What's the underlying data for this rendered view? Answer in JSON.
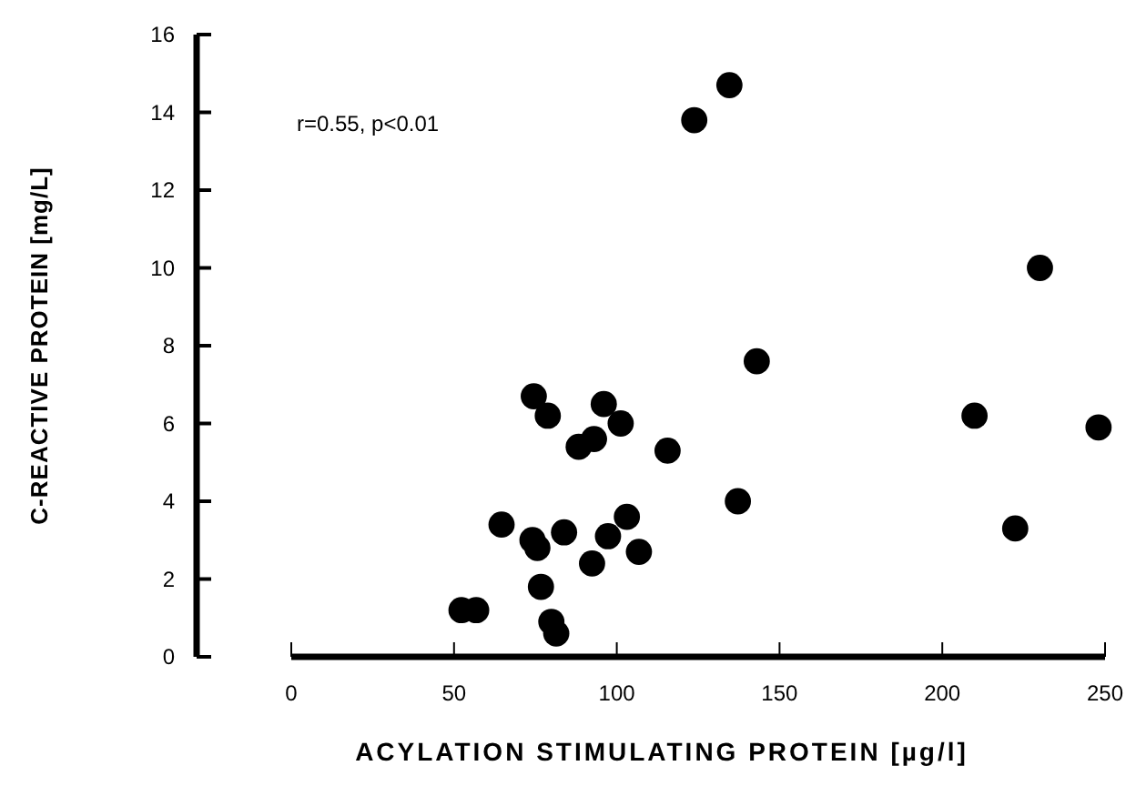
{
  "chart_data": {
    "type": "scatter",
    "xlabel": "ACYLATION STIMULATING PROTEIN [µg/l]",
    "ylabel": "C-REACTIVE PROTEIN [mg/L]",
    "annotations": [
      "r=0.55, p<0.01"
    ],
    "xlim": [
      0,
      250
    ],
    "xticks": [
      0,
      50,
      100,
      150,
      200,
      250
    ],
    "ylim": [
      0,
      16
    ],
    "yticks": [
      0,
      2,
      4,
      6,
      8,
      10,
      12,
      14,
      16
    ],
    "marker": "circle",
    "grid": false,
    "series": [
      {
        "color": "#000000",
        "x": [
          134.6,
          123.8,
          230.0,
          143.0,
          74.5,
          78.8,
          96.0,
          101.2,
          88.3,
          93.0,
          115.6,
          209.9,
          248.0,
          137.2,
          222.4,
          64.6,
          103.1,
          74.1,
          75.6,
          83.8,
          97.3,
          106.8,
          92.4,
          76.7,
          52.3,
          56.8,
          79.9,
          81.4
        ],
        "values": [
          14.7,
          13.8,
          10.0,
          7.6,
          6.7,
          6.2,
          6.5,
          6.0,
          5.4,
          5.6,
          5.3,
          6.2,
          5.9,
          4.0,
          3.3,
          3.4,
          3.6,
          3.0,
          2.8,
          3.2,
          3.1,
          2.7,
          2.4,
          1.8,
          1.2,
          1.2,
          0.9,
          0.6
        ]
      }
    ]
  }
}
